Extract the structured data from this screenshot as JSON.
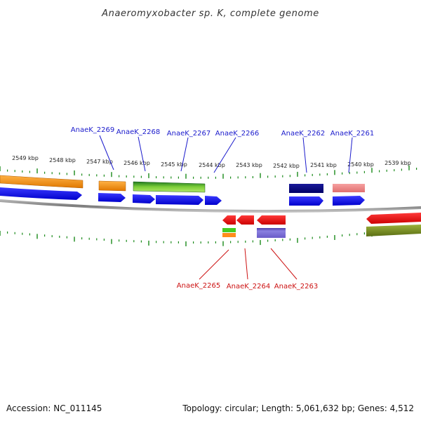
{
  "title": "Anaeromyxobacter sp. K, complete genome",
  "footer": {
    "accession": "Accession: NC_011145",
    "summary": "Topology: circular; Length: 5,061,632 bp; Genes: 4,512"
  },
  "ruler_labels": [
    "2549 kbp",
    "2548 kbp",
    "2547 kbp",
    "2546 kbp",
    "2545 kbp",
    "2544 kbp",
    "2543 kbp",
    "2542 kbp",
    "2541 kbp",
    "2540 kbp",
    "2539 kbp"
  ],
  "genes_top": [
    "AnaeK_2269",
    "AnaeK_2268",
    "AnaeK_2267",
    "AnaeK_2266",
    "AnaeK_2262",
    "AnaeK_2261"
  ],
  "genes_bottom": [
    "AnaeK_2265",
    "AnaeK_2264",
    "AnaeK_2263"
  ],
  "colors": {
    "ruler_tick": "#1a8a1a",
    "backbone": "#8a8a8a",
    "forward_gene": "#1010ee",
    "reverse_gene": "#ee1010",
    "top_label": "#1a1acc",
    "bottom_label": "#cc1111"
  }
}
